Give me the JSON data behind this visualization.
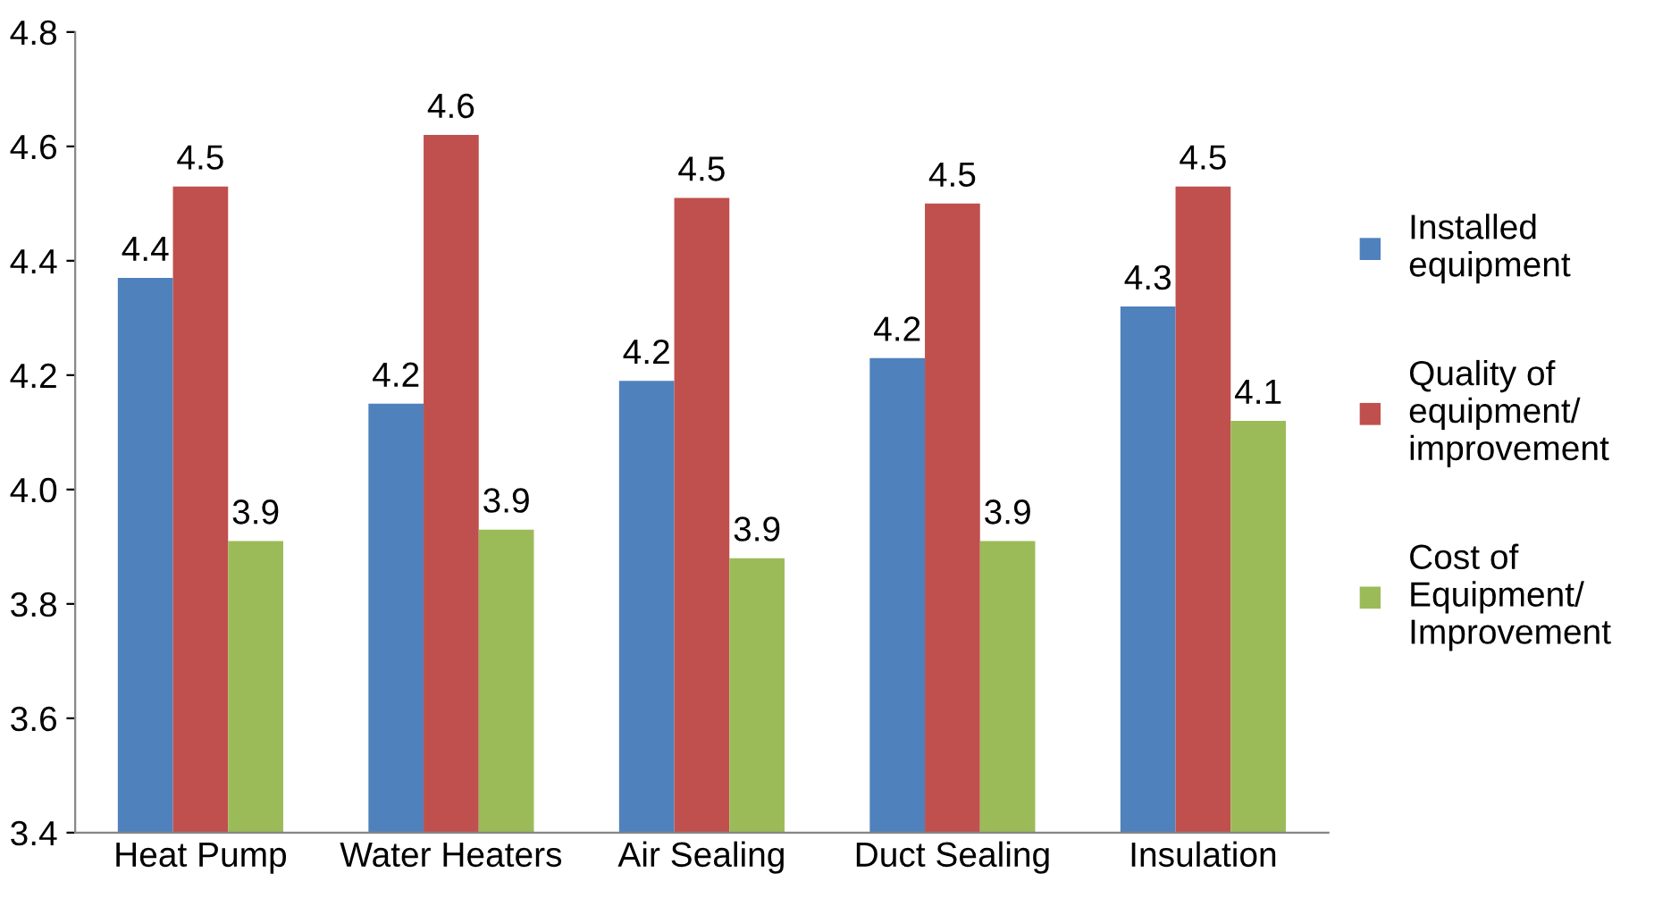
{
  "chart_data": {
    "type": "bar",
    "categories": [
      "Heat Pump",
      "Water Heaters",
      "Air Sealing",
      "Duct Sealing",
      "Insulation"
    ],
    "series": [
      {
        "name": "Installed\nequipment",
        "color": "#4f81bd",
        "values": [
          4.37,
          4.15,
          4.19,
          4.23,
          4.32
        ],
        "value_labels": [
          "4.4",
          "4.2",
          "4.2",
          "4.2",
          "4.3"
        ]
      },
      {
        "name": "Quality of\nequipment/\nimprovement",
        "color": "#c0504d",
        "values": [
          4.53,
          4.62,
          4.51,
          4.5,
          4.53
        ],
        "value_labels": [
          "4.5",
          "4.6",
          "4.5",
          "4.5",
          "4.5"
        ]
      },
      {
        "name": "Cost of\nEquipment/\nImprovement",
        "color": "#9bbb59",
        "values": [
          3.91,
          3.93,
          3.88,
          3.91,
          4.12
        ],
        "value_labels": [
          "3.9",
          "3.9",
          "3.9",
          "3.9",
          "4.1"
        ]
      }
    ],
    "ylim": [
      3.4,
      4.8
    ],
    "yticks": [
      3.4,
      3.6,
      3.8,
      {
        "value": 4,
        "label": "4.0"
      },
      4.2,
      4.4,
      4.6,
      4.8
    ],
    "grid": false,
    "legend": "right"
  }
}
